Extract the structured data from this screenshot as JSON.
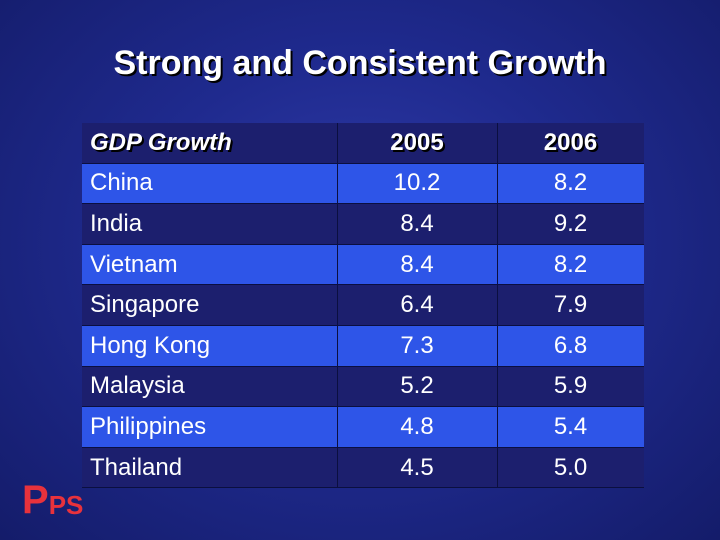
{
  "slide": {
    "title": "Strong and Consistent Growth"
  },
  "table": {
    "header": [
      "GDP Growth",
      "2005",
      "2006"
    ],
    "rows": [
      [
        "China",
        "10.2",
        "8.2"
      ],
      [
        "India",
        "8.4",
        "9.2"
      ],
      [
        "Vietnam",
        "8.4",
        "8.2"
      ],
      [
        "Singapore",
        "6.4",
        "7.9"
      ],
      [
        "Hong Kong",
        "7.3",
        "6.8"
      ],
      [
        "Malaysia",
        "5.2",
        "5.9"
      ],
      [
        "Philippines",
        "4.8",
        "5.4"
      ],
      [
        "Thailand",
        "4.5",
        "5.0"
      ]
    ]
  },
  "logo": {
    "big": "P",
    "small": "PS"
  },
  "colors": {
    "background": "#1f2a8e",
    "row_dark": "#1c1f6e",
    "row_light": "#2e55e8",
    "logo": "#e8323c"
  }
}
